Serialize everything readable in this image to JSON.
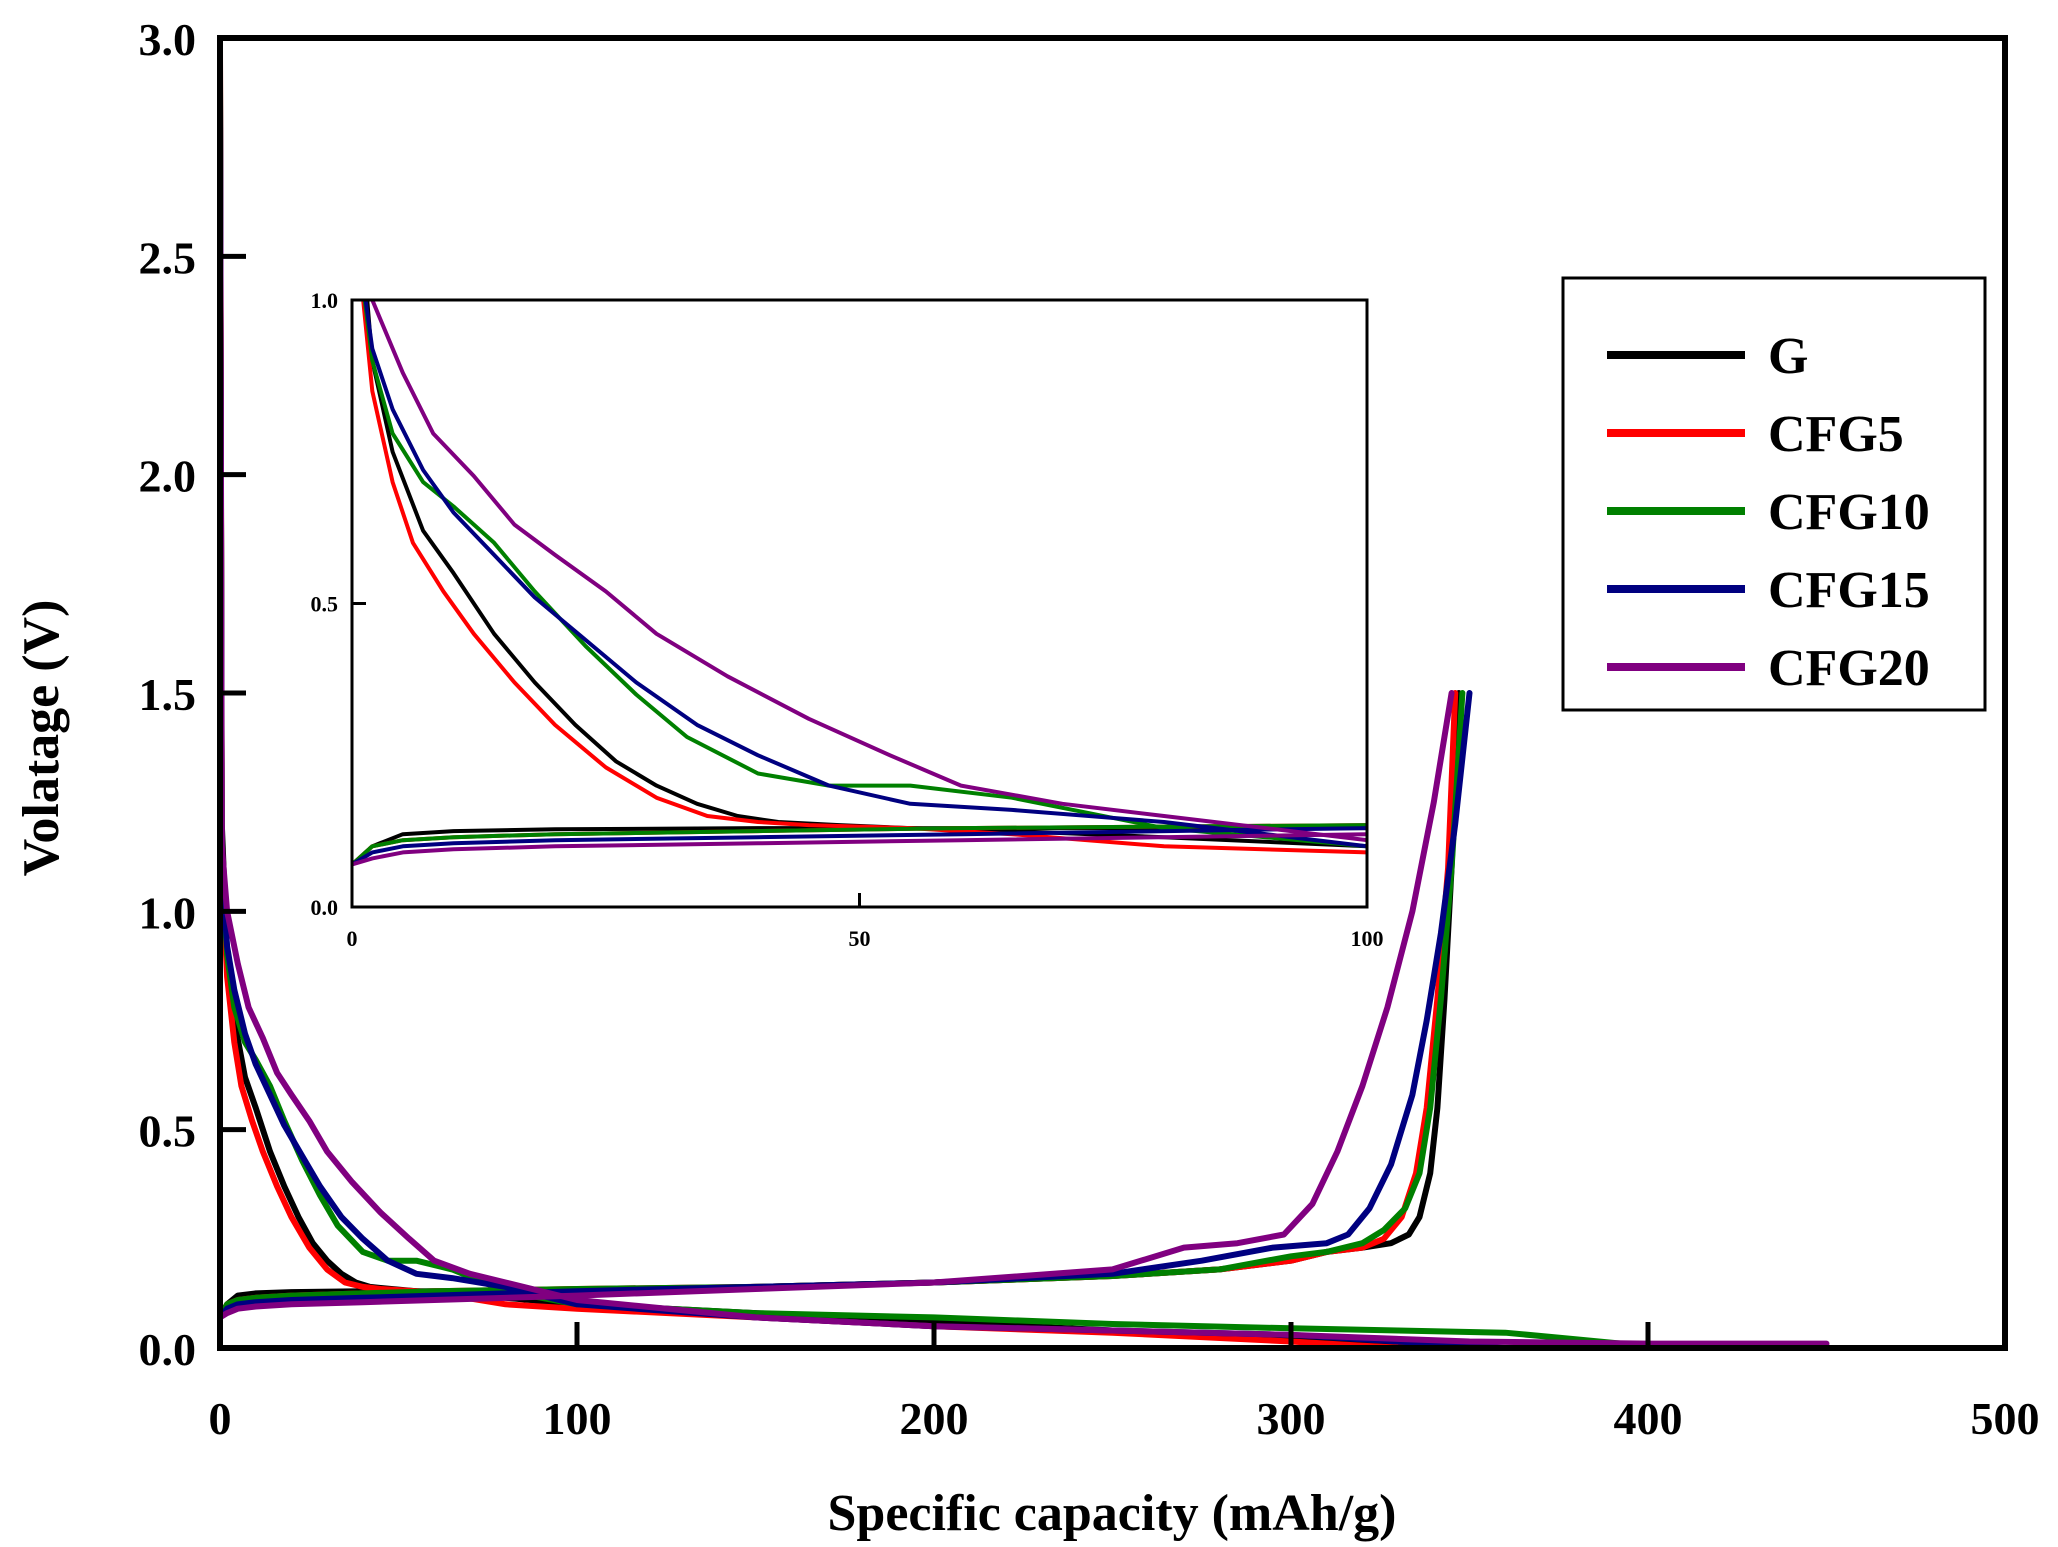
{
  "chart_data": {
    "type": "line",
    "title": "",
    "xlabel": "Specific capacity (mAh/g)",
    "ylabel": "Volatage (V)",
    "xlim": [
      0,
      500
    ],
    "ylim": [
      0,
      3.0
    ],
    "xticks": [
      0,
      100,
      200,
      300,
      400,
      500
    ],
    "xtick_labels": [
      "0",
      "100",
      "200",
      "300",
      "400",
      "500"
    ],
    "yticks": [
      0.0,
      0.5,
      1.0,
      1.5,
      2.0,
      2.5,
      3.0
    ],
    "ytick_labels": [
      "0.0",
      "0.5",
      "1.0",
      "1.5",
      "2.0",
      "2.5",
      "3.0"
    ],
    "legend_position": "top-right",
    "series": [
      {
        "name": "G",
        "color": "#000000",
        "discharge": {
          "x": [
            0,
            0.5,
            2,
            4,
            7,
            10,
            14,
            18,
            22,
            26,
            30,
            34,
            38,
            42,
            48,
            55,
            65,
            80,
            100,
            150,
            200,
            250,
            300,
            320,
            330,
            335,
            340,
            345
          ],
          "y": [
            2.95,
            1.2,
            0.9,
            0.75,
            0.62,
            0.55,
            0.45,
            0.37,
            0.3,
            0.24,
            0.2,
            0.17,
            0.15,
            0.14,
            0.135,
            0.13,
            0.125,
            0.115,
            0.1,
            0.08,
            0.06,
            0.04,
            0.02,
            0.01,
            0.005,
            0.002,
            0.001,
            0.0
          ]
        },
        "charge": {
          "x": [
            0,
            2,
            5,
            10,
            20,
            40,
            60,
            100,
            150,
            200,
            250,
            280,
            300,
            310,
            320,
            328,
            333,
            336,
            339,
            341,
            343,
            345,
            347
          ],
          "y": [
            0.07,
            0.1,
            0.12,
            0.125,
            0.128,
            0.13,
            0.13,
            0.13,
            0.14,
            0.15,
            0.165,
            0.18,
            0.2,
            0.22,
            0.23,
            0.24,
            0.26,
            0.3,
            0.4,
            0.55,
            0.8,
            1.1,
            1.5
          ]
        }
      },
      {
        "name": "CFG5",
        "color": "#ff0000",
        "discharge": {
          "x": [
            0,
            0.5,
            2,
            4,
            6,
            9,
            12,
            16,
            20,
            25,
            30,
            35,
            40,
            45,
            55,
            65,
            80,
            100,
            150,
            200,
            250,
            300,
            320,
            330,
            335
          ],
          "y": [
            2.98,
            1.1,
            0.85,
            0.7,
            0.6,
            0.52,
            0.45,
            0.37,
            0.3,
            0.23,
            0.18,
            0.15,
            0.14,
            0.135,
            0.13,
            0.12,
            0.1,
            0.09,
            0.07,
            0.05,
            0.035,
            0.015,
            0.005,
            0.001,
            0.0
          ]
        },
        "charge": {
          "x": [
            0,
            2,
            5,
            10,
            20,
            40,
            60,
            100,
            150,
            200,
            250,
            280,
            300,
            310,
            320,
            326,
            331,
            335,
            338,
            341,
            344,
            346
          ],
          "y": [
            0.07,
            0.1,
            0.11,
            0.115,
            0.12,
            0.125,
            0.13,
            0.135,
            0.14,
            0.15,
            0.165,
            0.18,
            0.2,
            0.22,
            0.23,
            0.25,
            0.3,
            0.4,
            0.55,
            0.8,
            1.1,
            1.5
          ]
        }
      },
      {
        "name": "CFG10",
        "color": "#008000",
        "discharge": {
          "x": [
            0,
            0.5,
            2,
            4,
            7,
            10,
            14,
            18,
            23,
            28,
            33,
            40,
            47,
            55,
            65,
            80,
            100,
            150,
            200,
            250,
            300,
            330,
            360,
            380,
            395,
            400
          ],
          "y": [
            2.9,
            1.1,
            0.9,
            0.78,
            0.7,
            0.66,
            0.6,
            0.52,
            0.43,
            0.35,
            0.28,
            0.22,
            0.2,
            0.2,
            0.18,
            0.13,
            0.1,
            0.08,
            0.07,
            0.055,
            0.045,
            0.04,
            0.035,
            0.02,
            0.008,
            0.0
          ]
        },
        "charge": {
          "x": [
            0,
            2,
            5,
            10,
            20,
            40,
            60,
            100,
            150,
            200,
            250,
            280,
            300,
            310,
            320,
            326,
            332,
            336,
            339,
            342,
            345,
            348
          ],
          "y": [
            0.07,
            0.1,
            0.11,
            0.115,
            0.12,
            0.125,
            0.13,
            0.135,
            0.14,
            0.15,
            0.165,
            0.18,
            0.21,
            0.22,
            0.24,
            0.27,
            0.32,
            0.4,
            0.55,
            0.8,
            1.1,
            1.5
          ]
        }
      },
      {
        "name": "CFG15",
        "color": "#000080",
        "discharge": {
          "x": [
            0,
            0.5,
            2,
            4,
            7,
            10,
            14,
            18,
            23,
            28,
            34,
            40,
            47,
            55,
            65,
            80,
            100,
            150,
            200,
            250,
            300,
            330,
            350,
            360
          ],
          "y": [
            2.88,
            1.1,
            0.92,
            0.82,
            0.72,
            0.65,
            0.58,
            0.51,
            0.44,
            0.37,
            0.3,
            0.25,
            0.2,
            0.17,
            0.16,
            0.14,
            0.1,
            0.07,
            0.05,
            0.04,
            0.03,
            0.015,
            0.005,
            0.0
          ]
        },
        "charge": {
          "x": [
            0,
            2,
            5,
            10,
            20,
            40,
            60,
            100,
            150,
            200,
            250,
            275,
            295,
            310,
            316,
            322,
            328,
            334,
            338,
            342,
            346,
            350
          ],
          "y": [
            0.07,
            0.09,
            0.1,
            0.105,
            0.11,
            0.115,
            0.12,
            0.13,
            0.14,
            0.15,
            0.17,
            0.2,
            0.23,
            0.24,
            0.26,
            0.32,
            0.42,
            0.58,
            0.75,
            0.95,
            1.2,
            1.5
          ]
        }
      },
      {
        "name": "CFG20",
        "color": "#800080",
        "discharge": {
          "x": [
            0,
            0.5,
            2,
            5,
            8,
            12,
            16,
            20,
            25,
            30,
            37,
            45,
            53,
            60,
            70,
            80,
            100,
            150,
            200,
            250,
            300,
            350,
            400,
            450
          ],
          "y": [
            2.85,
            1.15,
            1.0,
            0.88,
            0.78,
            0.71,
            0.63,
            0.58,
            0.52,
            0.45,
            0.38,
            0.31,
            0.25,
            0.2,
            0.17,
            0.15,
            0.11,
            0.07,
            0.05,
            0.04,
            0.03,
            0.015,
            0.01,
            0.01
          ]
        },
        "charge": {
          "x": [
            0,
            2,
            5,
            10,
            20,
            40,
            60,
            100,
            150,
            200,
            250,
            270,
            285,
            298,
            306,
            313,
            320,
            327,
            334,
            340,
            345
          ],
          "y": [
            0.07,
            0.08,
            0.09,
            0.095,
            0.1,
            0.105,
            0.11,
            0.12,
            0.135,
            0.15,
            0.18,
            0.23,
            0.24,
            0.26,
            0.33,
            0.45,
            0.6,
            0.78,
            1.0,
            1.25,
            1.5
          ]
        }
      }
    ],
    "inset": {
      "xlim": [
        0,
        100
      ],
      "ylim": [
        0,
        1.0
      ],
      "xticks": [
        0,
        50,
        100
      ],
      "xtick_labels": [
        "0",
        "50",
        "100"
      ],
      "yticks": [
        0.0,
        0.5,
        1.0
      ],
      "ytick_labels": [
        "0.0",
        "0.5",
        "1.0"
      ],
      "note": "zoomed view of the same series, capacity 0-100 mAh/g, voltage 0-1.0 V"
    }
  }
}
